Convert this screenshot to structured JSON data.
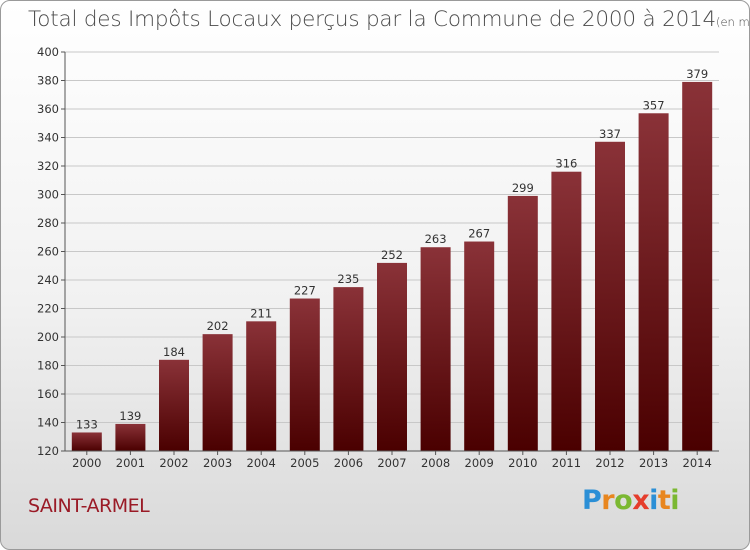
{
  "chart_data": {
    "type": "bar",
    "title": "Total des Impôts Locaux perçus par la Commune de 2000 à 2014",
    "title_unit": "(en milliers d'€)",
    "categories": [
      "2000",
      "2001",
      "2002",
      "2003",
      "2004",
      "2005",
      "2006",
      "2007",
      "2008",
      "2009",
      "2010",
      "2011",
      "2012",
      "2013",
      "2014"
    ],
    "values": [
      133,
      139,
      184,
      202,
      211,
      227,
      235,
      252,
      263,
      267,
      299,
      316,
      337,
      357,
      379
    ],
    "ylim": [
      120,
      400
    ],
    "yticks": [
      120,
      140,
      160,
      180,
      200,
      220,
      240,
      260,
      280,
      300,
      320,
      340,
      360,
      380,
      400
    ],
    "grid": true,
    "bar_color_top": "#8a3238",
    "bar_color_bottom": "#4a0000",
    "xlabel": "",
    "ylabel": ""
  },
  "commune": "SAINT-ARMEL",
  "logo": {
    "letters": [
      "P",
      "r",
      "o",
      "x",
      "i",
      "t",
      "i"
    ]
  }
}
